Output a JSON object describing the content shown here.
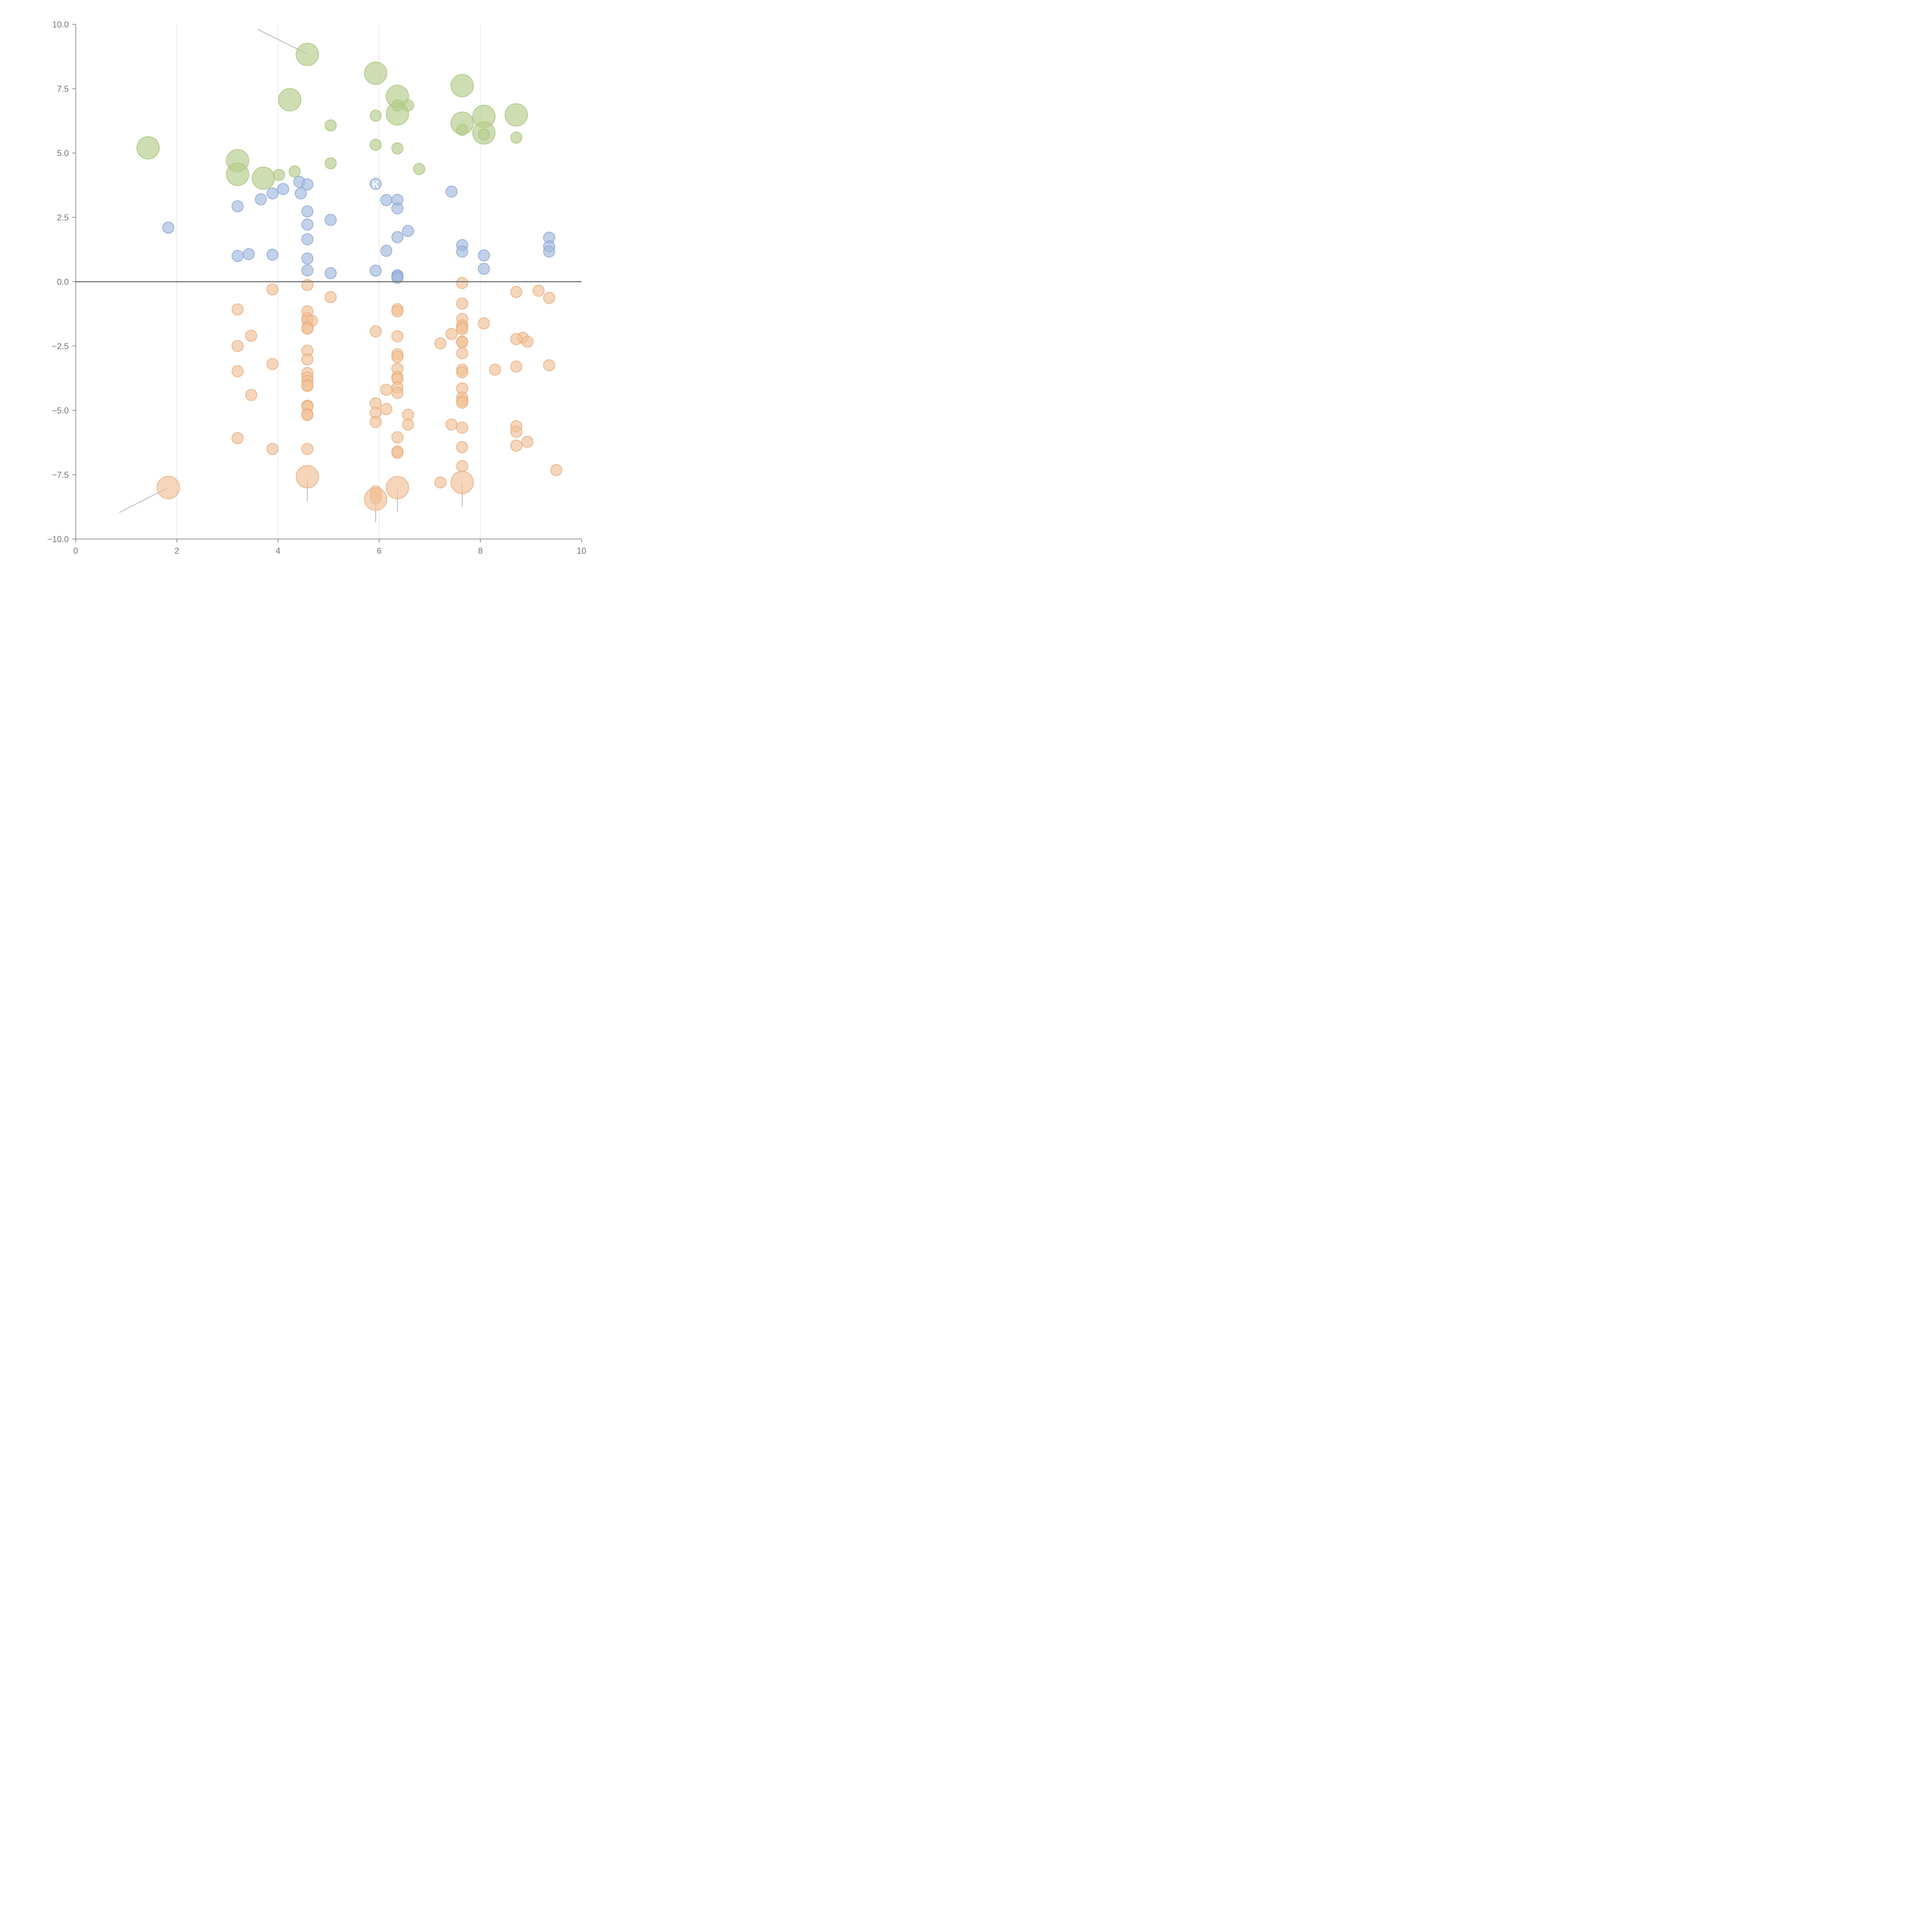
{
  "chart_data": {
    "type": "scatter",
    "title": "",
    "xlabel": "",
    "ylabel": "",
    "xlim": [
      0,
      10
    ],
    "ylim": [
      -10,
      10
    ],
    "x_ticks": [
      0,
      2,
      4,
      6,
      8,
      10
    ],
    "y_ticks": [
      10,
      7.5,
      5,
      2.5,
      0,
      -2.5,
      -5,
      -7.5,
      -10
    ],
    "x_tick_labels": [
      "0",
      "2",
      "4",
      "6",
      "8",
      "10"
    ],
    "y_tick_labels": [
      "10.0",
      "7.5",
      "5.0",
      "2.5",
      "0.0",
      "−2.5",
      "−5.0",
      "−7.5",
      "−10.0"
    ],
    "grid": "vertical",
    "zero_line": 0,
    "annotations": [
      {
        "text": "K",
        "x": 5.93,
        "y": 3.8
      }
    ],
    "series": [
      {
        "color": "#b7cf8e",
        "stroke": "#a9c47b",
        "points": [
          [
            4.58,
            8.83,
            "L"
          ],
          [
            5.93,
            8.1,
            "L"
          ],
          [
            7.64,
            7.62,
            "L"
          ],
          [
            6.36,
            7.2,
            "L"
          ],
          [
            4.23,
            7.07,
            "L"
          ],
          [
            8.71,
            6.48,
            "L"
          ],
          [
            6.36,
            6.52,
            "L"
          ],
          [
            8.07,
            6.42,
            "L"
          ],
          [
            7.64,
            6.16,
            "L"
          ],
          [
            8.07,
            5.78,
            "L"
          ],
          [
            1.43,
            5.2,
            "L"
          ],
          [
            3.2,
            4.7,
            "L"
          ],
          [
            3.2,
            4.17,
            "L"
          ],
          [
            3.71,
            4.02,
            "L"
          ],
          [
            6.36,
            6.85,
            "S"
          ],
          [
            6.57,
            6.85,
            "S"
          ],
          [
            5.93,
            6.45,
            "S"
          ],
          [
            5.04,
            6.07,
            "S"
          ],
          [
            7.64,
            5.9,
            "S"
          ],
          [
            8.07,
            5.72,
            "S"
          ],
          [
            8.71,
            5.6,
            "S"
          ],
          [
            5.93,
            5.32,
            "S"
          ],
          [
            6.36,
            5.18,
            "S"
          ],
          [
            5.04,
            4.6,
            "S"
          ],
          [
            6.79,
            4.38,
            "S"
          ],
          [
            4.33,
            4.28,
            "S"
          ],
          [
            4.02,
            4.15,
            "S"
          ]
        ]
      },
      {
        "color": "#a4bbdf",
        "stroke": "#8aa6d2",
        "points": [
          [
            4.42,
            3.88
          ],
          [
            4.58,
            3.78
          ],
          [
            5.93,
            3.8
          ],
          [
            4.1,
            3.6
          ],
          [
            7.43,
            3.5
          ],
          [
            3.89,
            3.43
          ],
          [
            4.45,
            3.43
          ],
          [
            3.66,
            3.2
          ],
          [
            6.14,
            3.17
          ],
          [
            6.36,
            3.18
          ],
          [
            3.2,
            2.93
          ],
          [
            6.36,
            2.85
          ],
          [
            4.58,
            2.73
          ],
          [
            5.04,
            2.4
          ],
          [
            4.58,
            2.22
          ],
          [
            1.83,
            2.1
          ],
          [
            6.57,
            1.97
          ],
          [
            6.36,
            1.73
          ],
          [
            9.36,
            1.71
          ],
          [
            4.58,
            1.65
          ],
          [
            7.64,
            1.42
          ],
          [
            9.36,
            1.37
          ],
          [
            6.14,
            1.2
          ],
          [
            7.64,
            1.17
          ],
          [
            9.36,
            1.17
          ],
          [
            3.42,
            1.07
          ],
          [
            3.89,
            1.05
          ],
          [
            8.07,
            1.02
          ],
          [
            3.2,
            1.0
          ],
          [
            4.58,
            0.9
          ],
          [
            8.07,
            0.5
          ],
          [
            4.58,
            0.44
          ],
          [
            5.93,
            0.43
          ],
          [
            5.04,
            0.33
          ],
          [
            6.36,
            0.25
          ],
          [
            6.36,
            0.2
          ],
          [
            6.36,
            0.15
          ]
        ]
      },
      {
        "color": "#f1c29a",
        "stroke": "#e9ab7a",
        "points": [
          [
            4.58,
            -0.13,
            "S"
          ],
          [
            7.64,
            -0.05,
            "S"
          ],
          [
            3.89,
            -0.3,
            "S"
          ],
          [
            9.15,
            -0.35,
            "S"
          ],
          [
            8.71,
            -0.4,
            "S"
          ],
          [
            5.04,
            -0.6,
            "S"
          ],
          [
            9.36,
            -0.63,
            "S"
          ],
          [
            7.64,
            -0.85,
            "S"
          ],
          [
            3.2,
            -1.08,
            "S"
          ],
          [
            6.36,
            -1.07,
            "S"
          ],
          [
            6.36,
            -1.15,
            "S"
          ],
          [
            4.58,
            -1.15,
            "S"
          ],
          [
            4.58,
            -1.42,
            "S"
          ],
          [
            4.58,
            -1.52,
            "S"
          ],
          [
            4.67,
            -1.52,
            "S"
          ],
          [
            7.64,
            -1.45,
            "S"
          ],
          [
            8.07,
            -1.62,
            "S"
          ],
          [
            7.64,
            -1.7,
            "S"
          ],
          [
            7.64,
            -1.78,
            "S"
          ],
          [
            4.58,
            -1.78,
            "S"
          ],
          [
            4.58,
            -1.83,
            "S"
          ],
          [
            7.64,
            -1.85,
            "S"
          ],
          [
            5.93,
            -1.93,
            "S"
          ],
          [
            7.43,
            -2.03,
            "S"
          ],
          [
            3.47,
            -2.1,
            "S"
          ],
          [
            6.36,
            -2.12,
            "S"
          ],
          [
            8.84,
            -2.18,
            "S"
          ],
          [
            8.71,
            -2.23,
            "S"
          ],
          [
            7.64,
            -2.33,
            "S"
          ],
          [
            7.64,
            -2.35,
            "S"
          ],
          [
            8.93,
            -2.33,
            "S"
          ],
          [
            7.21,
            -2.4,
            "S"
          ],
          [
            3.2,
            -2.5,
            "S"
          ],
          [
            4.58,
            -2.68,
            "S"
          ],
          [
            7.64,
            -2.78,
            "S"
          ],
          [
            6.36,
            -2.82,
            "S"
          ],
          [
            6.36,
            -2.92,
            "S"
          ],
          [
            4.58,
            -3.02,
            "S"
          ],
          [
            3.89,
            -3.2,
            "S"
          ],
          [
            9.36,
            -3.25,
            "S"
          ],
          [
            8.71,
            -3.3,
            "S"
          ],
          [
            6.36,
            -3.38,
            "S"
          ],
          [
            8.29,
            -3.42,
            "S"
          ],
          [
            7.64,
            -3.42,
            "S"
          ],
          [
            7.64,
            -3.52,
            "S"
          ],
          [
            3.2,
            -3.48,
            "S"
          ],
          [
            4.58,
            -3.55,
            "S"
          ],
          [
            6.36,
            -3.7,
            "S"
          ],
          [
            4.58,
            -3.72,
            "S"
          ],
          [
            6.36,
            -3.78,
            "S"
          ],
          [
            4.58,
            -3.85,
            "S"
          ],
          [
            4.58,
            -4.02,
            "S"
          ],
          [
            4.58,
            -4.05,
            "S"
          ],
          [
            6.36,
            -4.12,
            "S"
          ],
          [
            7.64,
            -4.15,
            "S"
          ],
          [
            6.14,
            -4.2,
            "S"
          ],
          [
            6.36,
            -4.32,
            "S"
          ],
          [
            3.47,
            -4.4,
            "S"
          ],
          [
            7.64,
            -4.5,
            "S"
          ],
          [
            7.64,
            -4.63,
            "S"
          ],
          [
            7.64,
            -4.7,
            "S"
          ],
          [
            5.93,
            -4.73,
            "S"
          ],
          [
            4.58,
            -4.82,
            "S"
          ],
          [
            4.58,
            -4.85,
            "S"
          ],
          [
            6.14,
            -4.95,
            "S"
          ],
          [
            5.93,
            -5.1,
            "S"
          ],
          [
            4.58,
            -5.15,
            "S"
          ],
          [
            4.58,
            -5.18,
            "S"
          ],
          [
            6.57,
            -5.17,
            "S"
          ],
          [
            5.93,
            -5.45,
            "S"
          ],
          [
            7.43,
            -5.55,
            "S"
          ],
          [
            6.57,
            -5.55,
            "S"
          ],
          [
            8.71,
            -5.62,
            "S"
          ],
          [
            7.64,
            -5.67,
            "S"
          ],
          [
            8.71,
            -5.83,
            "S"
          ],
          [
            6.36,
            -6.05,
            "S"
          ],
          [
            3.2,
            -6.08,
            "S"
          ],
          [
            8.93,
            -6.22,
            "S"
          ],
          [
            8.71,
            -6.37,
            "S"
          ],
          [
            7.64,
            -6.43,
            "S"
          ],
          [
            3.89,
            -6.5,
            "S"
          ],
          [
            4.58,
            -6.5,
            "S"
          ],
          [
            6.36,
            -6.6,
            "S"
          ],
          [
            6.36,
            -6.65,
            "S"
          ],
          [
            7.64,
            -7.17,
            "S"
          ],
          [
            9.5,
            -7.32,
            "S"
          ],
          [
            7.21,
            -7.8,
            "S"
          ],
          [
            5.93,
            -8.15,
            "S"
          ],
          [
            5.93,
            -8.3,
            "S"
          ],
          [
            5.93,
            -8.42,
            "S"
          ],
          [
            4.58,
            -7.58,
            "L"
          ],
          [
            1.83,
            -8.0,
            "L"
          ],
          [
            6.36,
            -8.0,
            "L"
          ],
          [
            7.64,
            -7.8,
            "L"
          ],
          [
            5.93,
            -8.45,
            "L"
          ]
        ]
      }
    ]
  }
}
